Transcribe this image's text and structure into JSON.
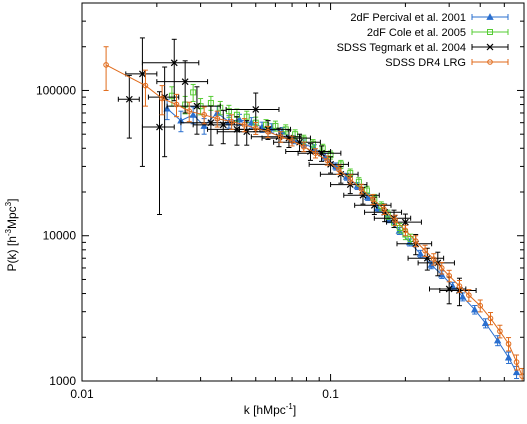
{
  "chart_data": {
    "type": "scatter",
    "xlabel": "k [hMpc",
    "xlabel_sup": "-1",
    "xlabel_end": "]",
    "ylabel_pre": "P(k) [h",
    "ylabel_sup1": "-3",
    "ylabel_mid": "Mpc",
    "ylabel_sup2": "3",
    "ylabel_end": "]",
    "xscale": "log",
    "yscale": "log",
    "xlim": [
      0.01,
      0.6
    ],
    "ylim": [
      1000,
      400000
    ],
    "xticks": [
      {
        "value": 0.01,
        "label": "0.01"
      },
      {
        "value": 0.1,
        "label": "0.1"
      }
    ],
    "yticks": [
      {
        "value": 1000,
        "label": "1000"
      },
      {
        "value": 10000,
        "label": "10000"
      },
      {
        "value": 100000,
        "label": "100000"
      }
    ],
    "legend_position": "top-right",
    "series": [
      {
        "name": "2dF Percival et al. 2001",
        "color": "#2a6fcf",
        "marker": "triangle",
        "line": true,
        "points": [
          [
            0.022,
            75000
          ],
          [
            0.025,
            62000
          ],
          [
            0.028,
            68000
          ],
          [
            0.031,
            57000
          ],
          [
            0.035,
            70000
          ],
          [
            0.039,
            61000
          ],
          [
            0.043,
            63000
          ],
          [
            0.048,
            60000
          ],
          [
            0.053,
            56000
          ],
          [
            0.058,
            55000
          ],
          [
            0.064,
            52000
          ],
          [
            0.071,
            46000
          ],
          [
            0.078,
            43000
          ],
          [
            0.086,
            40000
          ],
          [
            0.095,
            35000
          ],
          [
            0.105,
            30000
          ],
          [
            0.116,
            25500
          ],
          [
            0.128,
            22000
          ],
          [
            0.141,
            18500
          ],
          [
            0.155,
            15500
          ],
          [
            0.171,
            13000
          ],
          [
            0.189,
            10800
          ],
          [
            0.208,
            9000
          ],
          [
            0.23,
            7500
          ],
          [
            0.254,
            6300
          ],
          [
            0.28,
            5400
          ],
          [
            0.31,
            4500
          ],
          [
            0.34,
            3800
          ],
          [
            0.38,
            3100
          ],
          [
            0.42,
            2500
          ],
          [
            0.47,
            1900
          ],
          [
            0.52,
            1450
          ],
          [
            0.56,
            1150
          ]
        ],
        "yerr": [
          12000,
          10000,
          9000,
          7000,
          8000,
          6000,
          5500,
          5000,
          4500,
          4000,
          3500,
          3000,
          2600,
          2300,
          2000,
          1700,
          1400,
          1200,
          1000,
          850,
          700,
          600,
          500,
          430,
          370,
          320,
          280,
          240,
          210,
          180,
          150,
          130,
          110
        ]
      },
      {
        "name": "2dF Cole et al. 2005",
        "color": "#55cc33",
        "marker": "square",
        "line": false,
        "points": [
          [
            0.023,
            92000
          ],
          [
            0.026,
            80000
          ],
          [
            0.028,
            97000
          ],
          [
            0.03,
            78000
          ],
          [
            0.033,
            82000
          ],
          [
            0.036,
            76000
          ],
          [
            0.039,
            72000
          ],
          [
            0.042,
            68000
          ],
          [
            0.046,
            66000
          ],
          [
            0.05,
            60000
          ],
          [
            0.055,
            58000
          ],
          [
            0.06,
            57000
          ],
          [
            0.066,
            54000
          ],
          [
            0.072,
            50000
          ],
          [
            0.078,
            46000
          ],
          [
            0.085,
            43000
          ],
          [
            0.093,
            40000
          ],
          [
            0.1,
            36000
          ],
          [
            0.11,
            31000
          ],
          [
            0.12,
            27000
          ],
          [
            0.13,
            23500
          ],
          [
            0.14,
            20500
          ],
          [
            0.15,
            18000
          ],
          [
            0.16,
            16000
          ],
          [
            0.17,
            14000
          ],
          [
            0.18,
            12300
          ],
          [
            0.19,
            11300
          ],
          [
            0.2,
            10200
          ],
          [
            0.21,
            9500
          ]
        ],
        "yerr": [
          14000,
          11000,
          13000,
          10000,
          9000,
          8000,
          7000,
          6500,
          6000,
          5500,
          5000,
          4500,
          4000,
          3600,
          3200,
          2900,
          2600,
          2300,
          2000,
          1800,
          1600,
          1400,
          1250,
          1100,
          1000,
          900,
          850,
          800,
          750
        ]
      },
      {
        "name": "SDSS Tegmark et al. 2004",
        "color": "#000000",
        "marker": "cross",
        "line": false,
        "points": [
          [
            0.0155,
            87000
          ],
          [
            0.0175,
            130000
          ],
          [
            0.0205,
            56000
          ],
          [
            0.0215,
            90000
          ],
          [
            0.0235,
            155000
          ],
          [
            0.026,
            115000
          ],
          [
            0.029,
            78000
          ],
          [
            0.033,
            60000
          ],
          [
            0.037,
            58000
          ],
          [
            0.042,
            54000
          ],
          [
            0.046,
            52000
          ],
          [
            0.05,
            74000
          ],
          [
            0.056,
            54000
          ],
          [
            0.062,
            48000
          ],
          [
            0.068,
            47000
          ],
          [
            0.075,
            44000
          ],
          [
            0.083,
            38000
          ],
          [
            0.092,
            37000
          ],
          [
            0.1,
            31000
          ],
          [
            0.11,
            26500
          ],
          [
            0.12,
            22500
          ],
          [
            0.135,
            19000
          ],
          [
            0.15,
            16200
          ],
          [
            0.165,
            14500
          ],
          [
            0.18,
            13200
          ],
          [
            0.2,
            12400
          ],
          [
            0.22,
            8800
          ],
          [
            0.245,
            7000
          ],
          [
            0.27,
            6500
          ],
          [
            0.3,
            4300
          ],
          [
            0.33,
            4200
          ]
        ],
        "xerr": [
          0.0015,
          0.0025,
          0.003,
          0.003,
          0.006,
          0.006,
          0.007,
          0.008,
          0.009,
          0.01,
          0.011,
          0.012,
          0.013,
          0.014,
          0.015,
          0.016,
          0.017,
          0.018,
          0.018,
          0.019,
          0.02,
          0.022,
          0.025,
          0.028,
          0.03,
          0.032,
          0.035,
          0.04,
          0.045,
          0.05,
          0.055
        ],
        "yerr": [
          40000,
          100000,
          42000,
          55000,
          70000,
          45000,
          28000,
          18000,
          15000,
          12000,
          10000,
          22000,
          8000,
          7000,
          6500,
          6000,
          5000,
          4500,
          4000,
          3500,
          3000,
          2500,
          2200,
          2000,
          1800,
          1700,
          1400,
          1200,
          1200,
          900,
          900
        ]
      },
      {
        "name": "SDSS DR4 LRG",
        "color": "#e06a1a",
        "marker": "circle",
        "line": true,
        "points": [
          [
            0.0125,
            150000
          ],
          [
            0.018,
            108000
          ],
          [
            0.021,
            88000
          ],
          [
            0.024,
            80000
          ],
          [
            0.027,
            72000
          ],
          [
            0.031,
            68000
          ],
          [
            0.035,
            64000
          ],
          [
            0.04,
            61000
          ],
          [
            0.045,
            58000
          ],
          [
            0.05,
            55000
          ],
          [
            0.056,
            52000
          ],
          [
            0.063,
            48000
          ],
          [
            0.07,
            45000
          ],
          [
            0.078,
            41000
          ],
          [
            0.087,
            37000
          ],
          [
            0.097,
            33000
          ],
          [
            0.108,
            28500
          ],
          [
            0.12,
            24500
          ],
          [
            0.133,
            21000
          ],
          [
            0.148,
            17800
          ],
          [
            0.164,
            15200
          ],
          [
            0.182,
            12800
          ],
          [
            0.2,
            10900
          ],
          [
            0.22,
            9200
          ],
          [
            0.24,
            7900
          ],
          [
            0.26,
            6900
          ],
          [
            0.28,
            6000
          ],
          [
            0.3,
            5300
          ],
          [
            0.33,
            4500
          ],
          [
            0.36,
            3900
          ],
          [
            0.4,
            3300
          ],
          [
            0.44,
            2700
          ],
          [
            0.48,
            2200
          ],
          [
            0.52,
            1800
          ],
          [
            0.56,
            1350
          ],
          [
            0.59,
            1080
          ]
        ],
        "yerr": [
          50000,
          30000,
          20000,
          14000,
          11000,
          9000,
          8000,
          7000,
          6000,
          5200,
          4600,
          4000,
          3500,
          3100,
          2700,
          2400,
          2100,
          1800,
          1600,
          1400,
          1200,
          1050,
          900,
          800,
          700,
          620,
          550,
          480,
          420,
          360,
          310,
          260,
          220,
          190,
          160,
          140
        ]
      }
    ]
  }
}
